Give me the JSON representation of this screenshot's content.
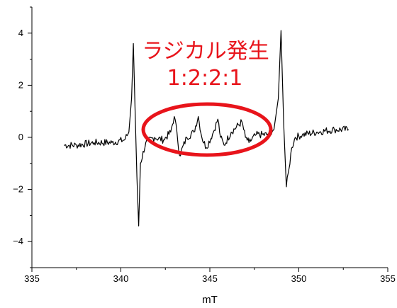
{
  "chart_data": {
    "type": "line",
    "title": "",
    "xlabel": "mT",
    "ylabel": "",
    "xlim": [
      335,
      355
    ],
    "ylim": [
      -5,
      5
    ],
    "x_ticks": [
      335,
      340,
      345,
      350,
      355
    ],
    "x_tick_labels": [
      "335",
      "340",
      "345",
      "350",
      "355"
    ],
    "y_ticks": [
      -4,
      -2,
      0,
      2,
      4
    ],
    "y_tick_labels": [
      "−4",
      "−2",
      "0",
      "2",
      "4"
    ],
    "grid": false,
    "legend": "none",
    "line_color": "#000000",
    "series": [
      {
        "x": [
          336.8,
          337.5,
          338.5,
          339.5,
          340.2,
          340.45,
          340.6,
          340.7,
          340.8,
          340.9,
          341.0,
          341.1,
          341.4,
          341.9,
          342.4,
          342.8,
          343.0,
          343.15,
          343.3,
          343.7,
          344.1,
          344.35,
          344.55,
          344.8,
          345.2,
          345.45,
          345.6,
          345.8,
          346.2,
          346.8,
          347.0,
          347.2,
          347.6,
          348.2,
          348.6,
          348.85,
          349.0,
          349.15,
          349.3,
          349.45,
          349.6,
          349.8,
          350.2,
          351.0,
          352.0,
          352.8
        ],
        "y": [
          -0.3,
          -0.3,
          -0.2,
          -0.2,
          -0.1,
          0.2,
          1.5,
          3.6,
          1.0,
          -1.5,
          -3.4,
          -1.0,
          -0.2,
          0.0,
          -0.1,
          0.2,
          0.8,
          0.2,
          -0.7,
          0.0,
          0.2,
          0.8,
          0.0,
          -0.4,
          0.2,
          0.7,
          0.0,
          -0.3,
          0.2,
          0.6,
          0.0,
          -0.2,
          0.1,
          0.1,
          0.3,
          1.5,
          4.1,
          0.5,
          -1.9,
          -1.2,
          -0.4,
          0.0,
          0.1,
          0.2,
          0.3,
          0.3
        ]
      }
    ],
    "annotations": [
      {
        "text": "ラジカル発生",
        "color": "#e8141b"
      },
      {
        "text": "1:2:2:1",
        "color": "#e8141b"
      }
    ]
  }
}
